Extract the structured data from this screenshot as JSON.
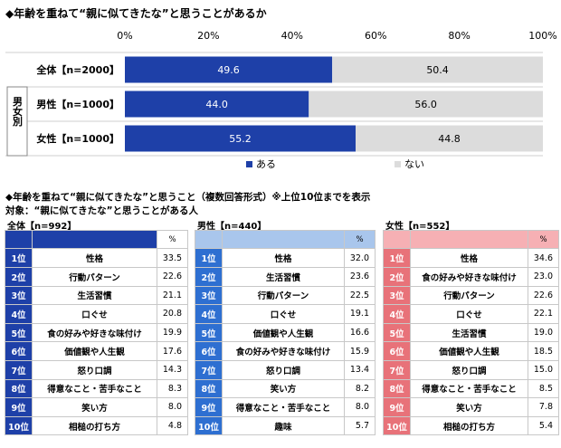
{
  "title1": "◆年齢を重ねて“親に似てきたな”と思うことがあるか",
  "chart_data": {
    "type": "bar",
    "stacked": true,
    "orientation": "horizontal",
    "x_ticks": [
      "0%",
      "20%",
      "40%",
      "60%",
      "80%",
      "100%"
    ],
    "xlim": [
      0,
      100
    ],
    "group_label": "男女別",
    "categories": [
      "全体【n=2000】",
      "男性【n=1000】",
      "女性【n=1000】"
    ],
    "series": [
      {
        "name": "ある",
        "color": "#1e40a8",
        "values": [
          49.6,
          44.0,
          55.2
        ]
      },
      {
        "name": "ない",
        "color": "#dcdcdc",
        "values": [
          50.4,
          56.0,
          44.8
        ]
      }
    ],
    "legend_position": "bottom"
  },
  "title2": "◆年齢を重ねて“親に似てきたな”と思うこと（複数回答形式）※上位10位までを表示",
  "subtitle2": "対象：“親に似てきたな”と思うことがある人",
  "tables": [
    {
      "label": "全体【n=992】",
      "pct_header": "%",
      "rows": [
        {
          "rank": "1位",
          "item": "性格",
          "value": "33.5"
        },
        {
          "rank": "2位",
          "item": "行動パターン",
          "value": "22.6"
        },
        {
          "rank": "3位",
          "item": "生活習慣",
          "value": "21.1"
        },
        {
          "rank": "4位",
          "item": "口ぐせ",
          "value": "20.8"
        },
        {
          "rank": "5位",
          "item": "食の好みや好きな味付け",
          "value": "19.9"
        },
        {
          "rank": "6位",
          "item": "価値観や人生観",
          "value": "17.6"
        },
        {
          "rank": "7位",
          "item": "怒り口調",
          "value": "14.3"
        },
        {
          "rank": "8位",
          "item": "得意なこと・苦手なこと",
          "value": "8.3"
        },
        {
          "rank": "9位",
          "item": "笑い方",
          "value": "8.0"
        },
        {
          "rank": "10位",
          "item": "相槌の打ち方",
          "value": "4.8"
        }
      ]
    },
    {
      "label": "男性【n=440】",
      "pct_header": "%",
      "rows": [
        {
          "rank": "1位",
          "item": "性格",
          "value": "32.0"
        },
        {
          "rank": "2位",
          "item": "生活習慣",
          "value": "23.6"
        },
        {
          "rank": "3位",
          "item": "行動パターン",
          "value": "22.5"
        },
        {
          "rank": "4位",
          "item": "口ぐせ",
          "value": "19.1"
        },
        {
          "rank": "5位",
          "item": "価値観や人生観",
          "value": "16.6"
        },
        {
          "rank": "6位",
          "item": "食の好みや好きな味付け",
          "value": "15.9"
        },
        {
          "rank": "7位",
          "item": "怒り口調",
          "value": "13.4"
        },
        {
          "rank": "8位",
          "item": "笑い方",
          "value": "8.2"
        },
        {
          "rank": "9位",
          "item": "得意なこと・苦手なこと",
          "value": "8.0"
        },
        {
          "rank": "10位",
          "item": "趣味",
          "value": "5.7"
        }
      ]
    },
    {
      "label": "女性【n=552】",
      "pct_header": "%",
      "rows": [
        {
          "rank": "1位",
          "item": "性格",
          "value": "34.6"
        },
        {
          "rank": "2位",
          "item": "食の好みや好きな味付け",
          "value": "23.0"
        },
        {
          "rank": "3位",
          "item": "行動パターン",
          "value": "22.6"
        },
        {
          "rank": "4位",
          "item": "口ぐせ",
          "value": "22.1"
        },
        {
          "rank": "5位",
          "item": "生活習慣",
          "value": "19.0"
        },
        {
          "rank": "6位",
          "item": "価値観や人生観",
          "value": "18.5"
        },
        {
          "rank": "7位",
          "item": "怒り口調",
          "value": "15.0"
        },
        {
          "rank": "8位",
          "item": "得意なこと・苦手なこと",
          "value": "8.5"
        },
        {
          "rank": "9位",
          "item": "笑い方",
          "value": "7.8"
        },
        {
          "rank": "10位",
          "item": "相槌の打ち方",
          "value": "5.4"
        }
      ]
    }
  ]
}
